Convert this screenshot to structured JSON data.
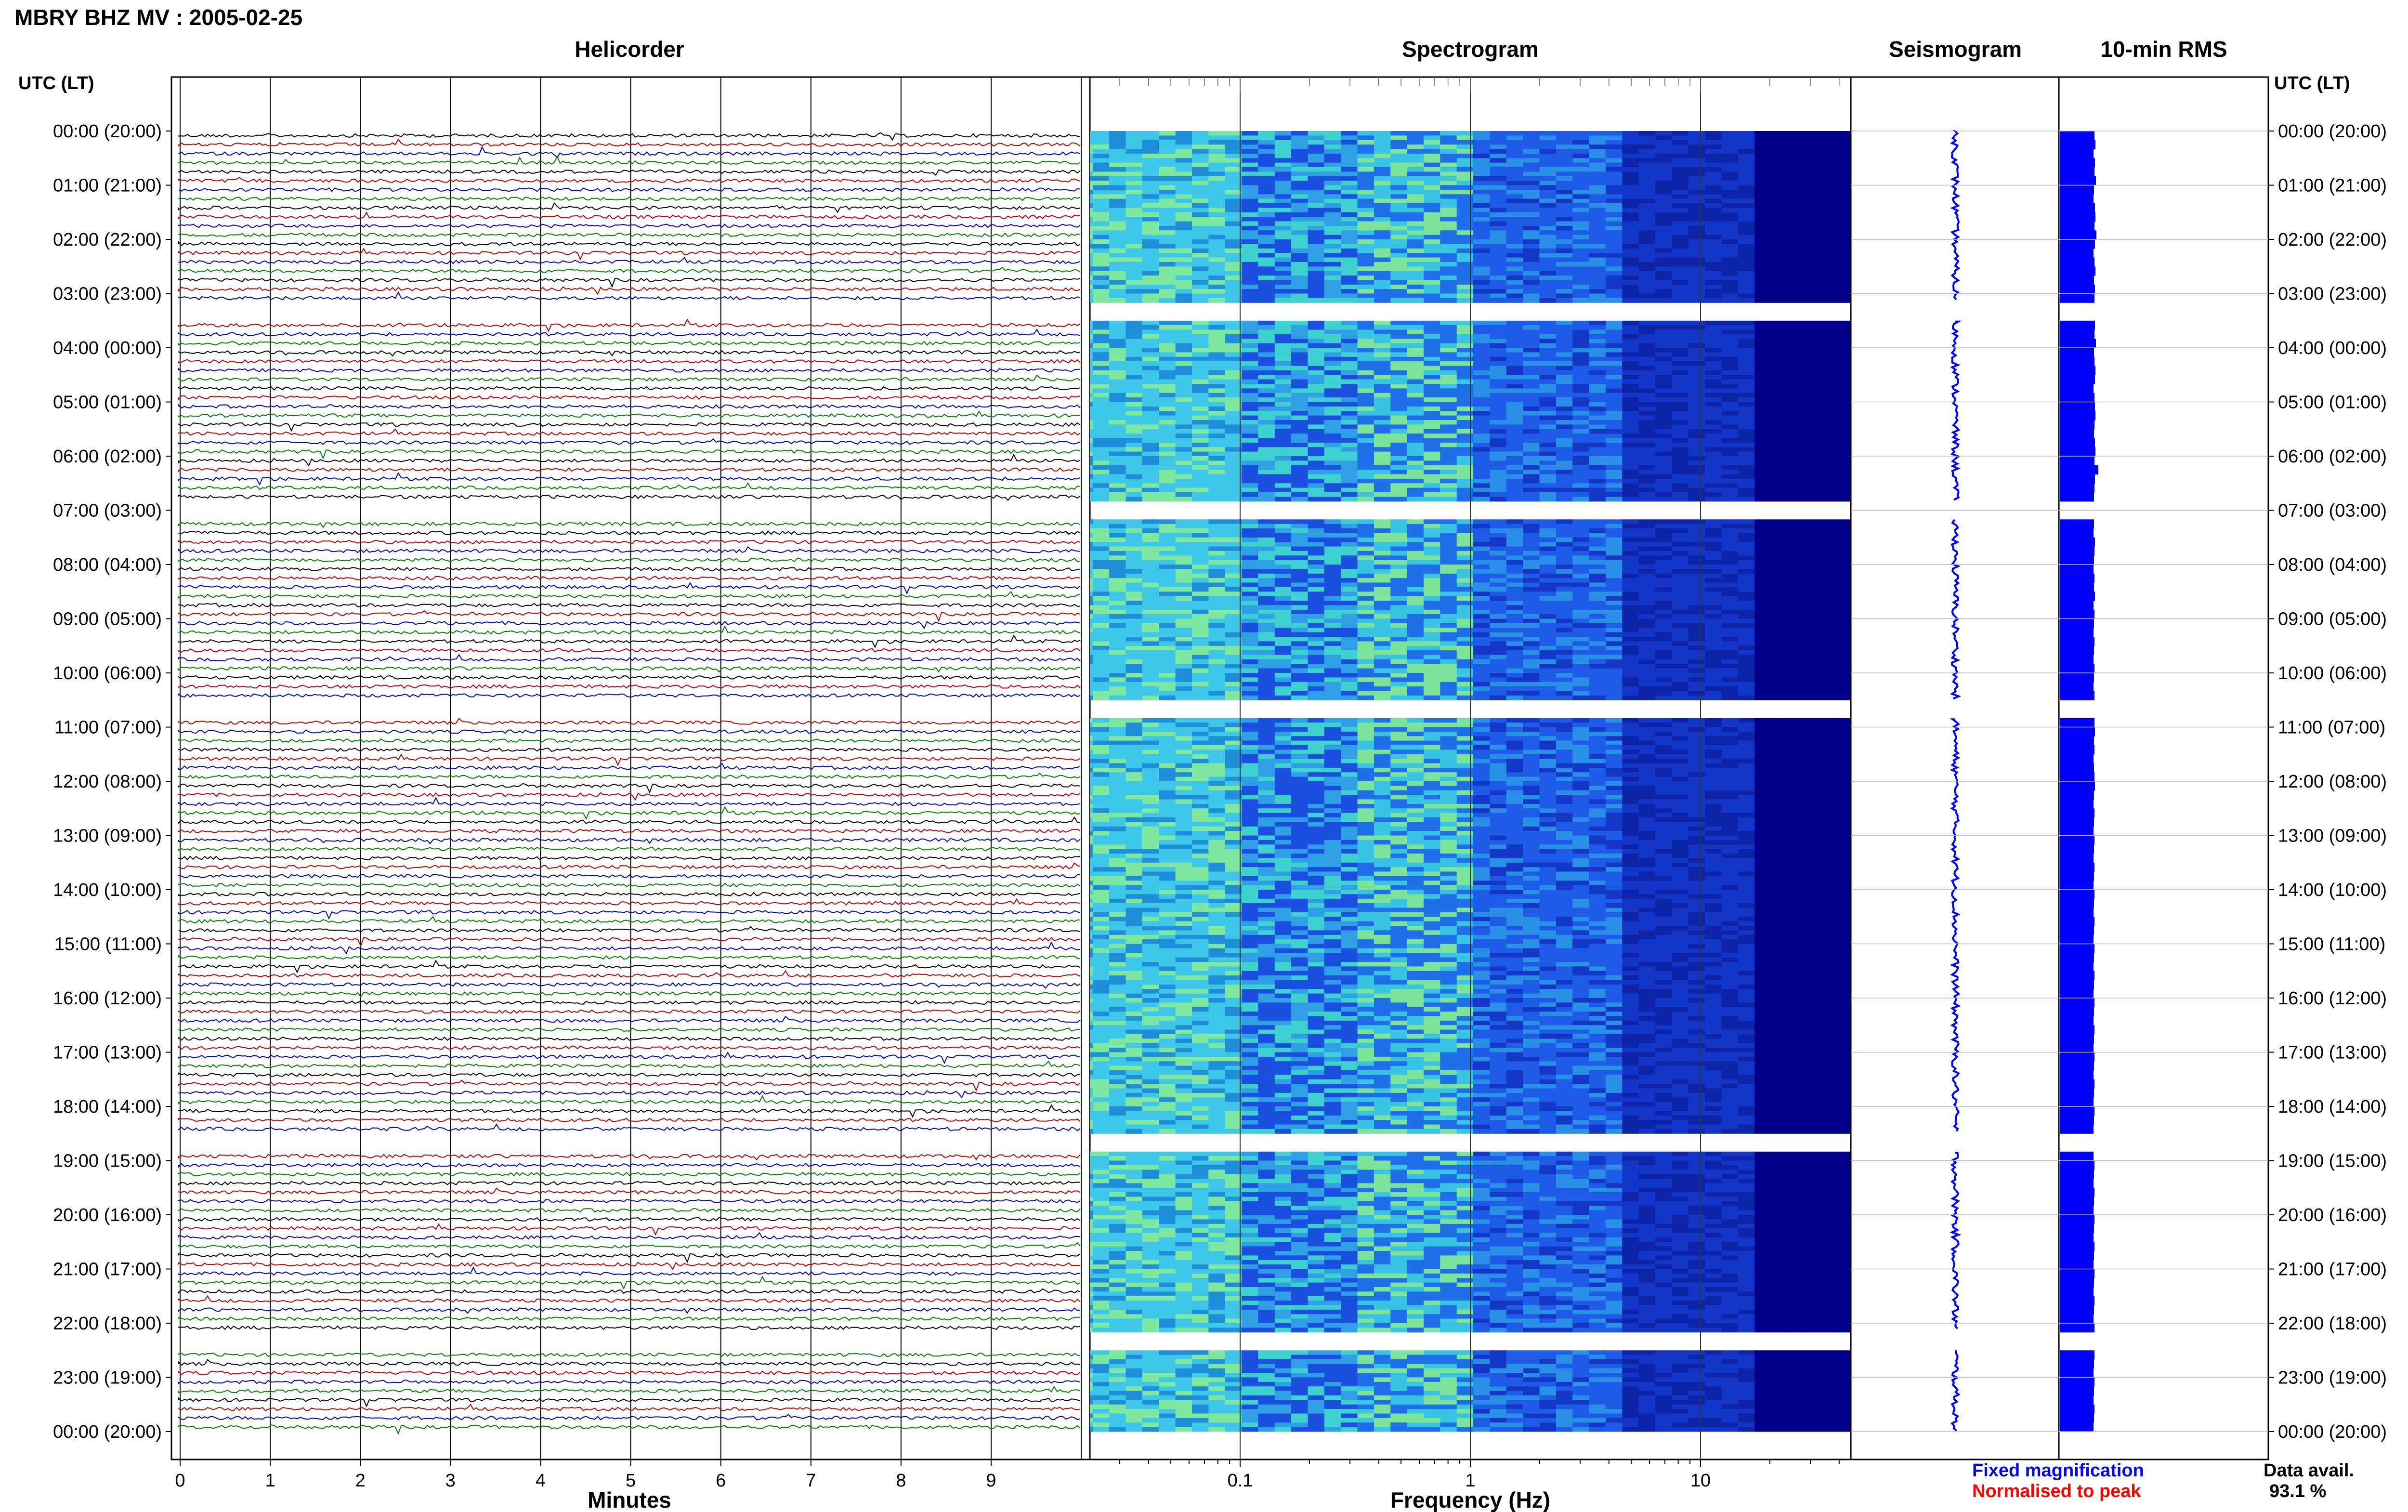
{
  "header": {
    "title": "MBRY BHZ MV : 2005-02-25"
  },
  "panels": {
    "helicorder": "Helicorder",
    "spectrogram": "Spectrogram",
    "seismogram": "Seismogram",
    "rms": "10-min RMS"
  },
  "axis_labels": {
    "left_time_header": "UTC (LT)",
    "right_time_header": "UTC (LT)",
    "minutes": "Minutes",
    "frequency": "Frequency (Hz)"
  },
  "legend": {
    "fixed": "Fixed magnification",
    "fixed_color": "#0000ff",
    "normalised": "Normalised to peak",
    "normalised_color": "#ff0000"
  },
  "data_availability": {
    "label": "Data avail.",
    "value": "93.1 %"
  },
  "colors": {
    "trace_cycle": [
      "#000000",
      "#c00000",
      "#0000c0",
      "#008000"
    ],
    "spectrogram_low": "#00008b",
    "spectrogram_mid": "#1e90ff",
    "spectrogram_high": "#aaff55",
    "rms_bar": "#0000ff",
    "seismogram_trace": "#0000ff"
  },
  "chart_data": {
    "type": "heatmap",
    "time_labels": [
      "00:00 (20:00)",
      "01:00 (21:00)",
      "02:00 (22:00)",
      "03:00 (23:00)",
      "04:00 (00:00)",
      "05:00 (01:00)",
      "06:00 (02:00)",
      "07:00 (03:00)",
      "08:00 (04:00)",
      "09:00 (05:00)",
      "10:00 (06:00)",
      "11:00 (07:00)",
      "12:00 (08:00)",
      "13:00 (09:00)",
      "14:00 (10:00)",
      "15:00 (11:00)",
      "16:00 (12:00)",
      "17:00 (13:00)",
      "18:00 (14:00)",
      "19:00 (15:00)",
      "20:00 (16:00)",
      "21:00 (17:00)",
      "22:00 (18:00)",
      "23:00 (19:00)",
      "00:00 (20:00)"
    ],
    "minutes_ticks": [
      "0",
      "1",
      "2",
      "3",
      "4",
      "5",
      "6",
      "7",
      "8",
      "9"
    ],
    "freq_ticks": [
      "0.1",
      "1",
      "10"
    ],
    "freq_range_hz": [
      0.01,
      50
    ],
    "freq_scale": "log",
    "data_gaps_utc_hours": [
      3.33,
      7.0,
      10.67,
      18.67,
      22.33
    ],
    "rms_relative": [
      0.72,
      0.74,
      0.7,
      0.73,
      0.72,
      0.75,
      0.71,
      0.7,
      0.73,
      0.74,
      0.72,
      0.76,
      0.73,
      0.7,
      0.72,
      0.74,
      0.71,
      0.73,
      0.72,
      0.7,
      0.74,
      0.73,
      0.72,
      0.75,
      0.71,
      0.72,
      0.74,
      0.73,
      0.7,
      0.72,
      0.73,
      0.74,
      0.72,
      0.71,
      0.73,
      0.74,
      0.72,
      0.8,
      0.73,
      0.72,
      0.71,
      0.7,
      0.72,
      0.71,
      0.7,
      0.73,
      0.72,
      0.71,
      0.7,
      0.72,
      0.71,
      0.73,
      0.7,
      0.72,
      0.71,
      0.7,
      0.72,
      0.71,
      0.7,
      0.72,
      0.71,
      0.7,
      0.72,
      0.71,
      0.7,
      0.72,
      0.73,
      0.71,
      0.72,
      0.7,
      0.71,
      0.72,
      0.73,
      0.71,
      0.7,
      0.72,
      0.71,
      0.7,
      0.72,
      0.71,
      0.7,
      0.72,
      0.71,
      0.7,
      0.72,
      0.71,
      0.7,
      0.72,
      0.71,
      0.7,
      0.72,
      0.71,
      0.7,
      0.72,
      0.71,
      0.7,
      0.72,
      0.71,
      0.7,
      0.72,
      0.71,
      0.7,
      0.72,
      0.71,
      0.7,
      0.72,
      0.71,
      0.7,
      0.72,
      0.71,
      0.7,
      0.72,
      0.71,
      0.7,
      0.72,
      0.71,
      0.7,
      0.72,
      0.71,
      0.7,
      0.72,
      0.71,
      0.7,
      0.72,
      0.71,
      0.7,
      0.72,
      0.71,
      0.7,
      0.72,
      0.71,
      0.7,
      0.72,
      0.71,
      0.7,
      0.72,
      0.71,
      0.7,
      0.72,
      0.71,
      0.7,
      0.72,
      0.71,
      0.7
    ]
  }
}
